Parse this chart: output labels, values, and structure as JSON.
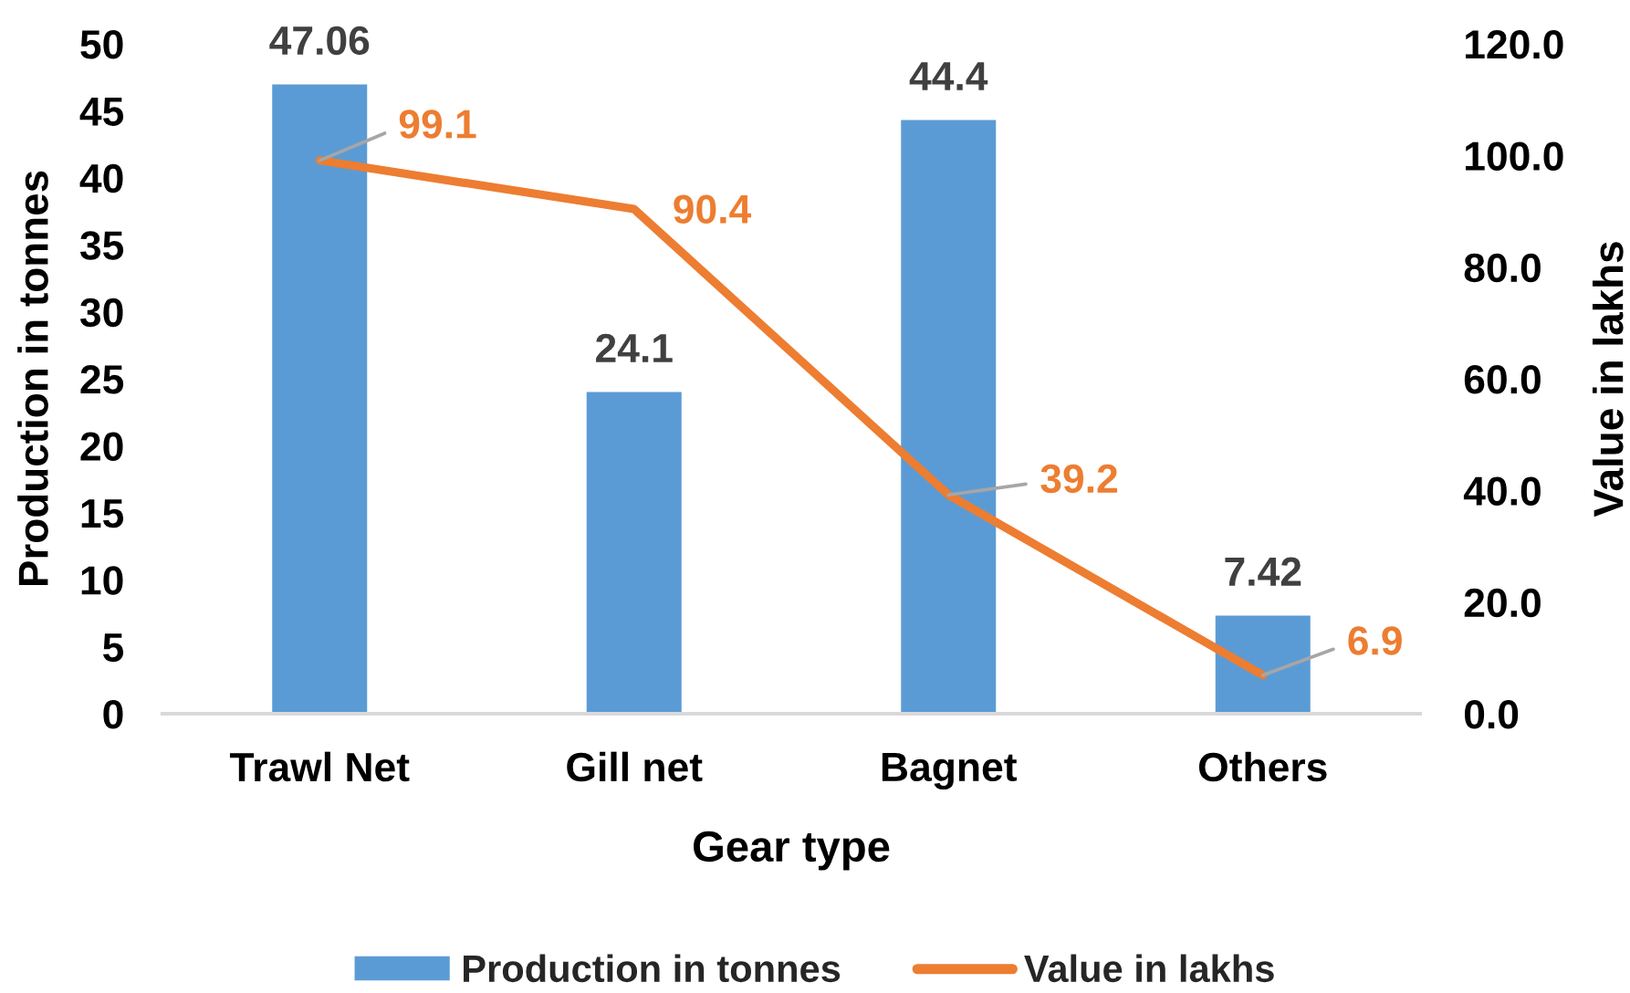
{
  "chart_data": {
    "type": "bar",
    "xlabel": "Gear type",
    "ylabel": "Production in tonnes",
    "y2label": "Value in lakhs",
    "categories": [
      "Trawl Net",
      "Gill net",
      "Bagnet",
      "Others"
    ],
    "series": [
      {
        "name": "Production in tonnes",
        "color": "#5b9bd5",
        "values": [
          47.06,
          24.1,
          44.4,
          7.42
        ]
      },
      {
        "name": "Value in lakhs",
        "type": "line",
        "axis": "y2",
        "color": "#ed7d31",
        "values": [
          99.1,
          90.4,
          39.2,
          6.9
        ]
      }
    ],
    "ylim": [
      0,
      50
    ],
    "yticks": [
      0,
      5,
      10,
      15,
      20,
      25,
      30,
      35,
      40,
      45,
      50
    ],
    "y2lim": [
      0,
      120
    ],
    "y2ticks": [
      {
        "value": 0,
        "label": "0.0"
      },
      {
        "value": 20,
        "label": "20.0"
      },
      {
        "value": 40,
        "label": "40.0"
      },
      {
        "value": 60,
        "label": "60.0"
      },
      {
        "value": 80,
        "label": "80.0"
      },
      {
        "value": 100,
        "label": "100.0"
      },
      {
        "value": 120,
        "label": "120.0"
      }
    ],
    "data_labels": true,
    "legend": "bottom"
  }
}
